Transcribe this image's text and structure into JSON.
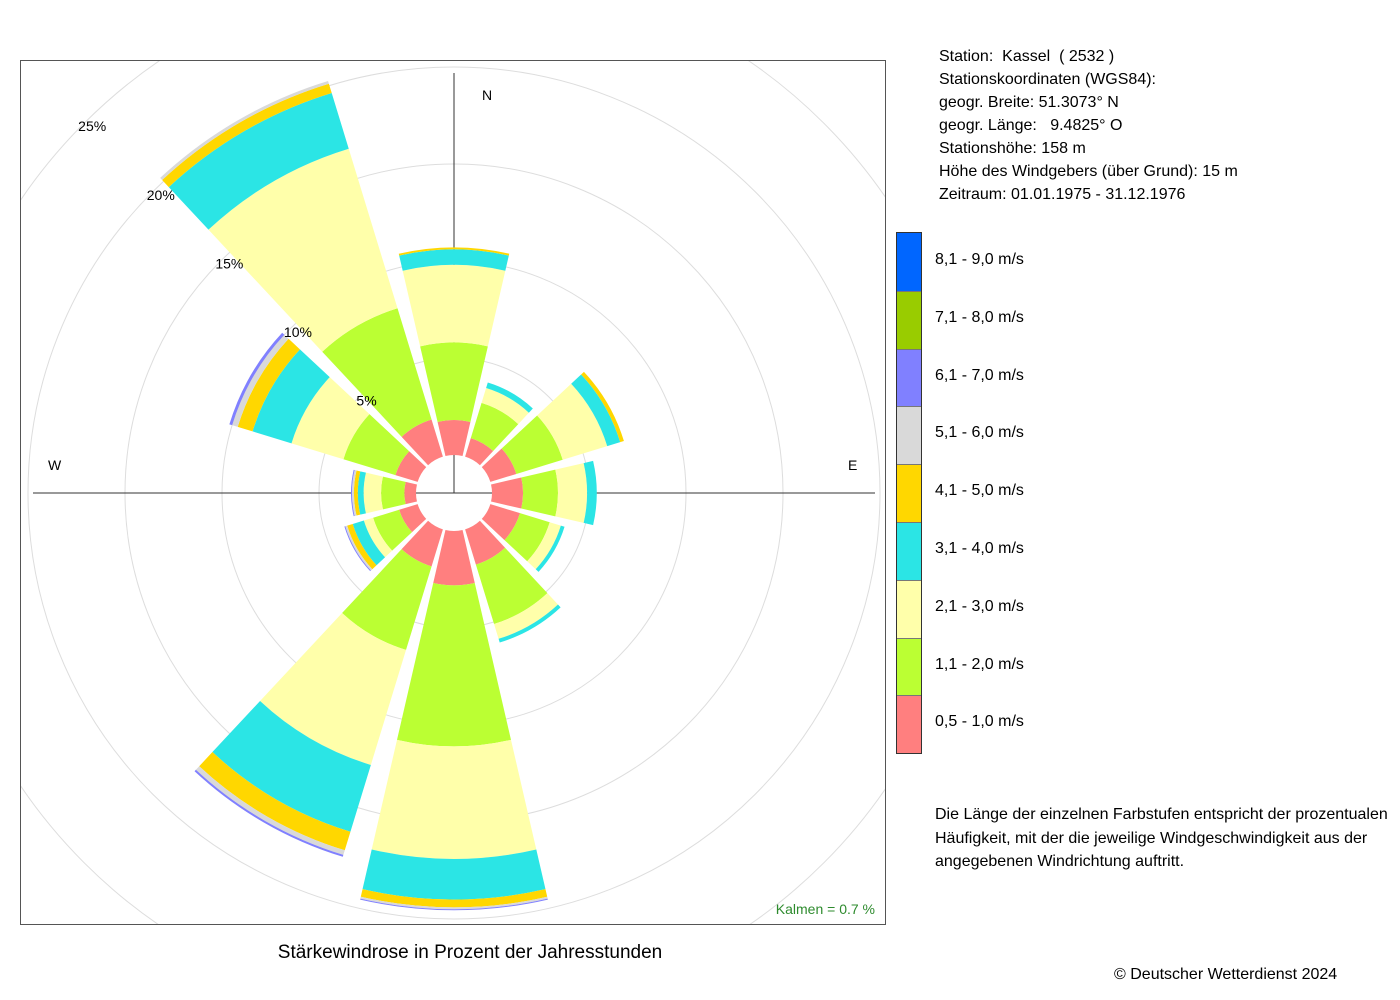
{
  "chart_data": {
    "type": "windrose",
    "title": "Stärkewindrose in Prozent der Jahresstunden",
    "rings": [
      {
        "value": 5,
        "label": "5%"
      },
      {
        "value": 10,
        "label": "10%"
      },
      {
        "value": 15,
        "label": "15%"
      },
      {
        "value": 20,
        "label": "20%"
      },
      {
        "value": 25,
        "label": "25%"
      }
    ],
    "compass": {
      "N": "N",
      "E": "E",
      "W": "W"
    },
    "calm_label": "Kalmen  =  0.7 %",
    "speed_classes": [
      {
        "label": "0,5 - 1,0 m/s",
        "color": "#FF7F7F"
      },
      {
        "label": "1,1 - 2,0 m/s",
        "color": "#BBFF33"
      },
      {
        "label": "2,1 - 3,0 m/s",
        "color": "#FFFFAA"
      },
      {
        "label": "3,1 - 4,0 m/s",
        "color": "#2BE5E5"
      },
      {
        "label": "4,1 - 5,0 m/s",
        "color": "#FFD700"
      },
      {
        "label": "5,1 - 6,0 m/s",
        "color": "#D9D9D9"
      },
      {
        "label": "6,1 - 7,0 m/s",
        "color": "#8080FF"
      },
      {
        "label": "7,1 - 8,0 m/s",
        "color": "#99CC00"
      },
      {
        "label": "8,1 - 9,0 m/s",
        "color": "#0066FF"
      }
    ],
    "sectors": [
      {
        "direction": 0,
        "values": [
          1.8,
          4.0,
          4.0,
          0.8,
          0.1,
          0,
          0,
          0,
          0
        ]
      },
      {
        "direction": 30,
        "values": [
          1.0,
          1.9,
          0.8,
          0.3,
          0,
          0,
          0,
          0,
          0
        ]
      },
      {
        "direction": 60,
        "values": [
          1.4,
          2.5,
          2.4,
          0.7,
          0.2,
          0,
          0,
          0,
          0
        ]
      },
      {
        "direction": 90,
        "values": [
          1.6,
          1.8,
          1.5,
          0.5,
          0,
          0,
          0,
          0,
          0
        ]
      },
      {
        "direction": 120,
        "values": [
          1.6,
          1.6,
          0.6,
          0.2,
          0,
          0,
          0,
          0,
          0
        ]
      },
      {
        "direction": 150,
        "values": [
          1.9,
          3.2,
          0.8,
          0.2,
          0,
          0,
          0,
          0,
          0
        ]
      },
      {
        "direction": 180,
        "values": [
          2.8,
          8.3,
          5.8,
          2.1,
          0.4,
          0.1,
          0.05,
          0,
          0
        ]
      },
      {
        "direction": 210,
        "values": [
          2.0,
          4.5,
          6.2,
          3.6,
          1.0,
          0.25,
          0.1,
          0,
          0
        ]
      },
      {
        "direction": 240,
        "values": [
          1.0,
          1.4,
          0.5,
          0.6,
          0.3,
          0.1,
          0.05,
          0,
          0
        ]
      },
      {
        "direction": 270,
        "values": [
          0.6,
          1.2,
          0.9,
          0.3,
          0.2,
          0.1,
          0.05,
          0,
          0
        ]
      },
      {
        "direction": 300,
        "values": [
          1.2,
          2.8,
          2.8,
          2.1,
          0.8,
          0.3,
          0.15,
          0,
          0
        ]
      },
      {
        "direction": 330,
        "values": [
          2.0,
          6.0,
          8.6,
          3.0,
          0.5,
          0.15,
          0,
          0,
          0
        ]
      }
    ]
  },
  "station_info": [
    "Station:  Kassel  ( 2532 )",
    "Stationskoordinaten (WGS84):",
    "geogr. Breite: 51.3073° N",
    "geogr. Länge:   9.4825° O",
    "Stationshöhe: 158 m",
    "Höhe des Windgebers (über Grund): 15 m",
    "Zeitraum: 01.01.1975 - 31.12.1976"
  ],
  "note": "Die Länge der einzelnen Farbstufen entspricht der prozentualen Häufigkeit, mit der die jeweilige Windgeschwindigkeit aus der angegebenen Windrichtung auftritt.",
  "copyright": "© Deutscher Wetterdienst  2024"
}
